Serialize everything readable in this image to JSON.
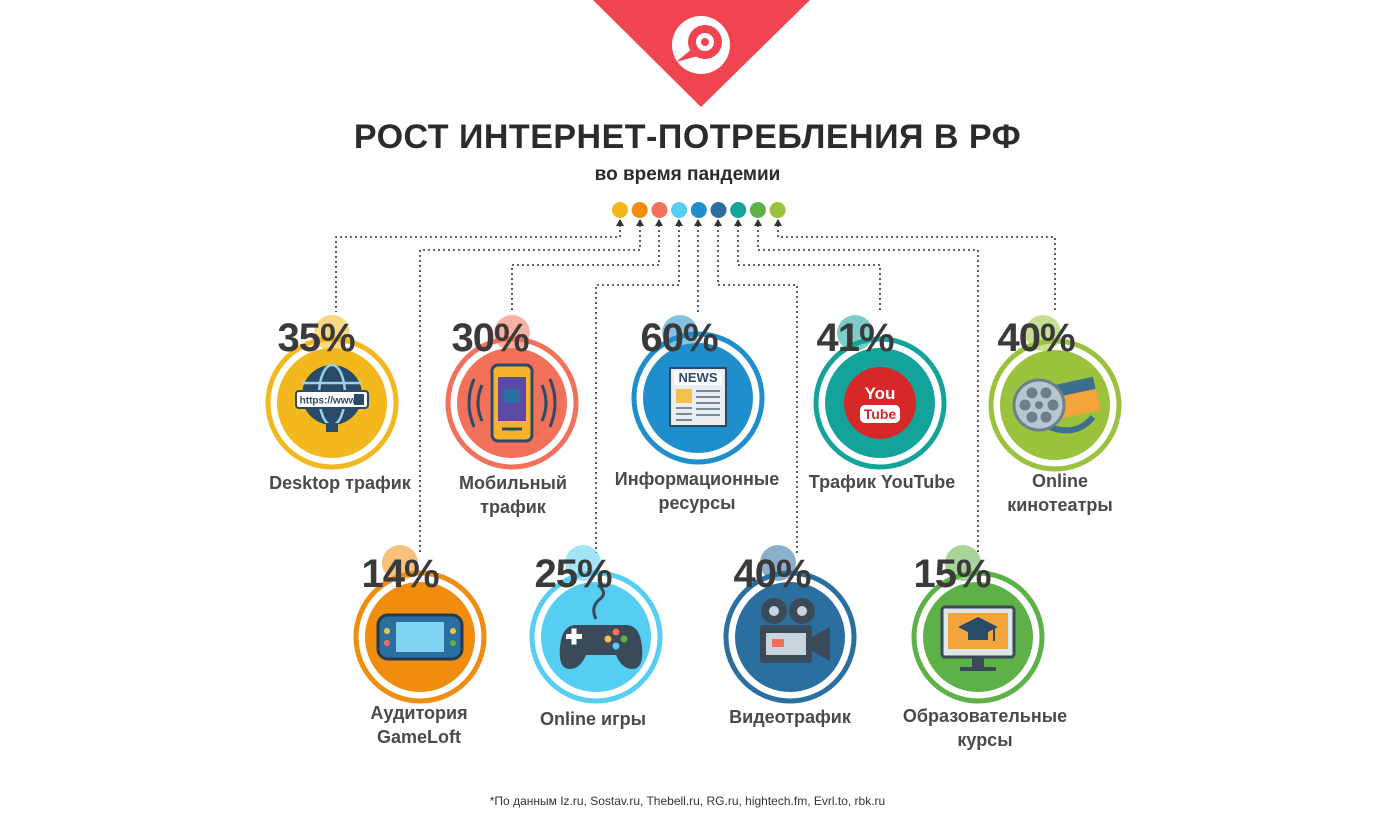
{
  "header": {
    "title": "РОСТ ИНТЕРНЕТ-ПОТРЕБЛЕНИЯ В РФ",
    "subtitle": "во время пандемии",
    "logo_color": "#f04450"
  },
  "items": [
    {
      "id": "desktop",
      "percent": "35%",
      "label_lines": [
        "Desktop трафик"
      ],
      "color": "#f2b81d",
      "icon": "globe-www-icon"
    },
    {
      "id": "mobile",
      "percent": "30%",
      "label_lines": [
        "Мобильный",
        "трафик"
      ],
      "color": "#f3705a",
      "icon": "smartphone-icon"
    },
    {
      "id": "news",
      "percent": "60%",
      "label_lines": [
        "Информационные",
        "ресурсы"
      ],
      "color": "#1e8fcc",
      "icon": "newspaper-icon"
    },
    {
      "id": "youtube",
      "percent": "41%",
      "label_lines": [
        "Трафик YouTube"
      ],
      "color": "#14a39a",
      "icon": "youtube-icon",
      "icon_text": [
        "You",
        "Tube"
      ]
    },
    {
      "id": "cinema",
      "percent": "40%",
      "label_lines": [
        "Online",
        "кинотеатры"
      ],
      "color": "#9ac23d",
      "icon": "film-reel-icon"
    },
    {
      "id": "gameloft",
      "percent": "14%",
      "label_lines": [
        "Аудитория",
        "GameLoft"
      ],
      "color": "#f08c0e",
      "icon": "handheld-console-icon"
    },
    {
      "id": "games",
      "percent": "25%",
      "label_lines": [
        "Online игры"
      ],
      "color": "#56cdf2",
      "icon": "gamepad-icon"
    },
    {
      "id": "video",
      "percent": "40%",
      "label_lines": [
        "Видеотрафик"
      ],
      "color": "#2a6fa0",
      "icon": "video-camera-icon"
    },
    {
      "id": "courses",
      "percent": "15%",
      "label_lines": [
        "Образовательные",
        "курсы"
      ],
      "color": "#5db146",
      "icon": "online-course-icon"
    }
  ],
  "dots": [
    "#f2b81d",
    "#f08c0e",
    "#f3705a",
    "#56cdf2",
    "#1e8fcc",
    "#2a6fa0",
    "#14a39a",
    "#5db146",
    "#9ac23d"
  ],
  "footnote": "*По данным Iz.ru, Sostav.ru, Thebell.ru, RG.ru, hightech.fm, Evrl.to, rbk.ru"
}
